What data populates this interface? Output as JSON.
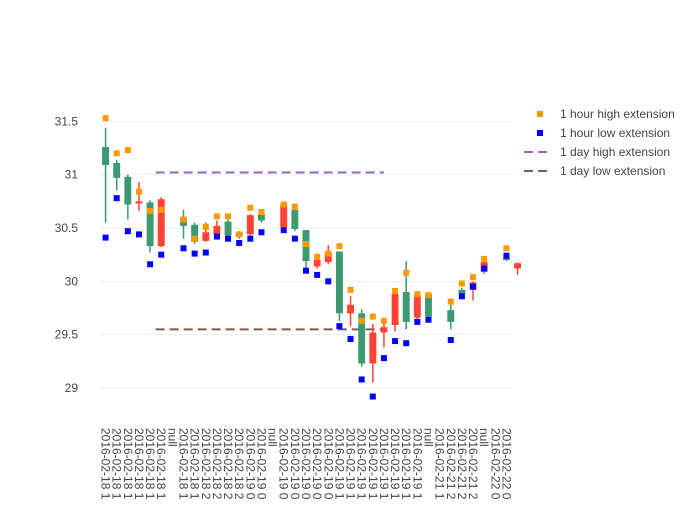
{
  "chart_data": {
    "type": "candlestick",
    "ylim": [
      28.7,
      31.7
    ],
    "yticks": [
      29,
      29.5,
      30,
      30.5,
      31,
      31.5
    ],
    "ytick_labels": [
      "29",
      "29.5",
      "30",
      "30.5",
      "31",
      "31.5"
    ],
    "colors": {
      "increasing": "#3d9970",
      "decreasing": "#ff4136",
      "high_ext": "#ff9900",
      "low_ext": "#0000ff",
      "day_high": "#9467bd",
      "day_low": "#8c564b"
    },
    "legend": {
      "position": "right",
      "items": [
        {
          "key": "hour_high",
          "label": "1 hour high extension"
        },
        {
          "key": "hour_low",
          "label": "1 hour low extension"
        },
        {
          "key": "day_high",
          "label": "1 day high extension"
        },
        {
          "key": "day_low",
          "label": "1 day low extension"
        }
      ]
    },
    "day_high_extension": 31.02,
    "day_low_extension": 29.55,
    "day_lines_span": [
      5,
      25
    ],
    "categories": [
      "2016-02-18 1",
      "2016-02-18 1",
      "2016-02-18 1",
      "2016-02-18 1",
      "2016-02-18 1",
      "2016-02-18 1",
      "null",
      "2016-02-18 1",
      "2016-02-18 1",
      "2016-02-18 2",
      "2016-02-18 2",
      "2016-02-18 2",
      "2016-02-18 2",
      "2016-02-19 0",
      "2016-02-19 0",
      "null",
      "2016-02-19 0",
      "2016-02-19 0",
      "2016-02-19 0",
      "2016-02-19 0",
      "2016-02-19 0",
      "2016-02-19 1",
      "2016-02-19 1",
      "2016-02-19 1",
      "2016-02-19 1",
      "2016-02-19 1",
      "2016-02-19 1",
      "2016-02-19 1",
      "2016-02-19 1",
      "null",
      "2016-02-21 1",
      "2016-02-21 2",
      "2016-02-21 2",
      "2016-02-21 2",
      "null",
      "2016-02-22 0",
      "2016-02-22 0"
    ],
    "candles": [
      {
        "x": 0,
        "open": 31.09,
        "high": 31.44,
        "low": 30.55,
        "close": 31.26,
        "high_ext": 31.53,
        "low_ext": 30.41
      },
      {
        "x": 1,
        "open": 30.97,
        "high": 31.14,
        "low": 30.85,
        "close": 31.11,
        "high_ext": 31.2,
        "low_ext": 30.78
      },
      {
        "x": 2,
        "open": 30.72,
        "high": 31.0,
        "low": 30.58,
        "close": 30.98,
        "high_ext": 31.23,
        "low_ext": 30.47
      },
      {
        "x": 3,
        "open": 30.75,
        "high": 30.93,
        "low": 30.66,
        "close": 30.73,
        "high_ext": 30.84,
        "low_ext": 30.44
      },
      {
        "x": 4,
        "open": 30.33,
        "high": 30.76,
        "low": 30.27,
        "close": 30.74,
        "high_ext": 30.66,
        "low_ext": 30.16
      },
      {
        "x": 5,
        "open": 30.77,
        "high": 30.79,
        "low": 30.32,
        "close": 30.33,
        "high_ext": 30.67,
        "low_ext": 30.25
      },
      {
        "x": 7,
        "open": 30.52,
        "high": 30.67,
        "low": 30.4,
        "close": 30.6,
        "high_ext": 30.58,
        "low_ext": 30.31
      },
      {
        "x": 8,
        "open": 30.37,
        "high": 30.55,
        "low": 30.35,
        "close": 30.53,
        "high_ext": 30.4,
        "low_ext": 30.26
      },
      {
        "x": 9,
        "open": 30.46,
        "high": 30.55,
        "low": 30.37,
        "close": 30.38,
        "high_ext": 30.51,
        "low_ext": 30.27
      },
      {
        "x": 10,
        "open": 30.52,
        "high": 30.57,
        "low": 30.43,
        "close": 30.44,
        "high_ext": 30.61,
        "low_ext": 30.42
      },
      {
        "x": 11,
        "open": 30.43,
        "high": 30.58,
        "low": 30.41,
        "close": 30.56,
        "high_ext": 30.61,
        "low_ext": 30.4
      },
      {
        "x": 12,
        "open": 30.42,
        "high": 30.47,
        "low": 30.4,
        "close": 30.46,
        "high_ext": 30.44,
        "low_ext": 30.36
      },
      {
        "x": 13,
        "open": 30.62,
        "high": 30.63,
        "low": 30.42,
        "close": 30.44,
        "high_ext": 30.69,
        "low_ext": 30.4
      },
      {
        "x": 14,
        "open": 30.57,
        "high": 30.66,
        "low": 30.55,
        "close": 30.63,
        "high_ext": 30.65,
        "low_ext": 30.46
      },
      {
        "x": 16,
        "open": 30.72,
        "high": 30.74,
        "low": 30.49,
        "close": 30.51,
        "high_ext": 30.72,
        "low_ext": 30.48
      },
      {
        "x": 17,
        "open": 30.49,
        "high": 30.7,
        "low": 30.47,
        "close": 30.67,
        "high_ext": 30.7,
        "low_ext": 30.4
      },
      {
        "x": 18,
        "open": 30.19,
        "high": 30.48,
        "low": 30.12,
        "close": 30.48,
        "high_ext": 30.35,
        "low_ext": 30.1
      },
      {
        "x": 19,
        "open": 30.2,
        "high": 30.26,
        "low": 30.12,
        "close": 30.14,
        "high_ext": 30.23,
        "low_ext": 30.06
      },
      {
        "x": 20,
        "open": 30.27,
        "high": 30.34,
        "low": 30.16,
        "close": 30.18,
        "high_ext": 30.26,
        "low_ext": 30.0
      },
      {
        "x": 21,
        "open": 29.7,
        "high": 30.28,
        "low": 29.63,
        "close": 30.28,
        "high_ext": 30.33,
        "low_ext": 29.58
      },
      {
        "x": 22,
        "open": 29.78,
        "high": 29.86,
        "low": 29.58,
        "close": 29.7,
        "high_ext": 29.92,
        "low_ext": 29.46
      },
      {
        "x": 23,
        "open": 29.23,
        "high": 29.74,
        "low": 29.2,
        "close": 29.7,
        "high_ext": 29.63,
        "low_ext": 29.08
      },
      {
        "x": 24,
        "open": 29.52,
        "high": 29.6,
        "low": 29.05,
        "close": 29.23,
        "high_ext": 29.67,
        "low_ext": 28.92
      },
      {
        "x": 25,
        "open": 29.57,
        "high": 29.62,
        "low": 29.38,
        "close": 29.52,
        "high_ext": 29.63,
        "low_ext": 29.28
      },
      {
        "x": 26,
        "open": 29.88,
        "high": 29.92,
        "low": 29.53,
        "close": 29.59,
        "high_ext": 29.91,
        "low_ext": 29.44
      },
      {
        "x": 27,
        "open": 29.62,
        "high": 30.19,
        "low": 29.55,
        "close": 29.9,
        "high_ext": 30.08,
        "low_ext": 29.42
      },
      {
        "x": 28,
        "open": 29.87,
        "high": 29.9,
        "low": 29.63,
        "close": 29.66,
        "high_ext": 29.88,
        "low_ext": 29.62
      },
      {
        "x": 29,
        "open": 29.67,
        "high": 29.89,
        "low": 29.66,
        "close": 29.88,
        "high_ext": 29.87,
        "low_ext": 29.64
      },
      {
        "x": 31,
        "open": 29.62,
        "high": 29.84,
        "low": 29.55,
        "close": 29.73,
        "high_ext": 29.81,
        "low_ext": 29.45
      },
      {
        "x": 32,
        "open": 29.88,
        "high": 29.94,
        "low": 29.85,
        "close": 29.92,
        "high_ext": 29.98,
        "low_ext": 29.86
      },
      {
        "x": 33,
        "open": 29.99,
        "high": 30.0,
        "low": 29.82,
        "close": 29.92,
        "high_ext": 30.04,
        "low_ext": 29.95
      },
      {
        "x": 34,
        "open": 30.18,
        "high": 30.22,
        "low": 30.07,
        "close": 30.09,
        "high_ext": 30.21,
        "low_ext": 30.12
      },
      {
        "x": 36,
        "open": 30.2,
        "high": 30.24,
        "low": 30.19,
        "close": 30.22,
        "high_ext": 30.31,
        "low_ext": 30.24
      },
      {
        "x": 37,
        "open": 30.17,
        "high": 30.18,
        "low": 30.06,
        "close": 30.12,
        "high_ext": null,
        "low_ext": null
      }
    ]
  }
}
